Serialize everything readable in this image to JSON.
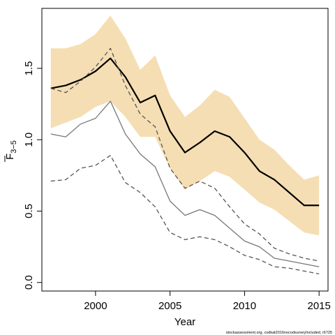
{
  "chart_data": {
    "type": "line",
    "title": "",
    "xlabel": "Year",
    "ylabel_main": "F",
    "ylabel_sub": "3−5",
    "xlim": [
      1996.4,
      2015.6
    ],
    "ylim": [
      -0.06,
      1.92
    ],
    "xticks": [
      2000,
      2005,
      2010,
      2015
    ],
    "yticks": [
      0.0,
      0.5,
      1.0,
      1.5
    ],
    "ytick_labels": [
      "0.0",
      "0.5",
      "1.0",
      "1.5"
    ],
    "grid": false,
    "band_color": "#f5deb3",
    "x": [
      1997,
      1998,
      1999,
      2000,
      2001,
      2002,
      2003,
      2004,
      2005,
      2006,
      2007,
      2008,
      2009,
      2010,
      2011,
      2012,
      2013,
      2014,
      2015
    ],
    "band": {
      "upper": [
        1.64,
        1.64,
        1.67,
        1.74,
        1.87,
        1.71,
        1.49,
        1.59,
        1.31,
        1.16,
        1.24,
        1.35,
        1.3,
        1.15,
        1.0,
        0.93,
        0.82,
        0.72,
        0.75
      ],
      "lower": [
        1.08,
        1.12,
        1.16,
        1.23,
        1.27,
        1.16,
        1.02,
        1.02,
        0.8,
        0.65,
        0.71,
        0.78,
        0.74,
        0.65,
        0.56,
        0.51,
        0.43,
        0.35,
        0.33
      ]
    },
    "series": [
      {
        "values": [
          1.36,
          1.38,
          1.42,
          1.48,
          1.57,
          1.44,
          1.26,
          1.31,
          1.06,
          0.91,
          0.98,
          1.06,
          1.02,
          0.91,
          0.78,
          0.72,
          0.63,
          0.54,
          0.54
        ],
        "color": "#000000",
        "width": 2.2,
        "dash": ""
      },
      {
        "values": [
          1.36,
          1.33,
          1.41,
          1.51,
          1.64,
          1.38,
          1.18,
          1.09,
          0.8,
          0.66,
          0.71,
          0.66,
          0.53,
          0.41,
          0.34,
          0.24,
          0.2,
          0.17,
          0.15
        ],
        "color": "#555555",
        "width": 1.3,
        "dash": "6,4"
      },
      {
        "values": [
          1.04,
          1.02,
          1.11,
          1.15,
          1.27,
          1.04,
          0.9,
          0.81,
          0.57,
          0.47,
          0.51,
          0.47,
          0.38,
          0.29,
          0.25,
          0.17,
          0.15,
          0.13,
          0.11
        ],
        "color": "#777777",
        "width": 1.3,
        "dash": ""
      },
      {
        "values": [
          0.71,
          0.72,
          0.8,
          0.82,
          0.89,
          0.7,
          0.63,
          0.53,
          0.35,
          0.3,
          0.32,
          0.3,
          0.25,
          0.19,
          0.16,
          0.11,
          0.1,
          0.08,
          0.06
        ],
        "color": "#555555",
        "width": 1.3,
        "dash": "6,4"
      }
    ]
  },
  "footer": {
    "credit": "stockassessment.org, codkat2016nocodsurveyIncluded, r6725"
  }
}
